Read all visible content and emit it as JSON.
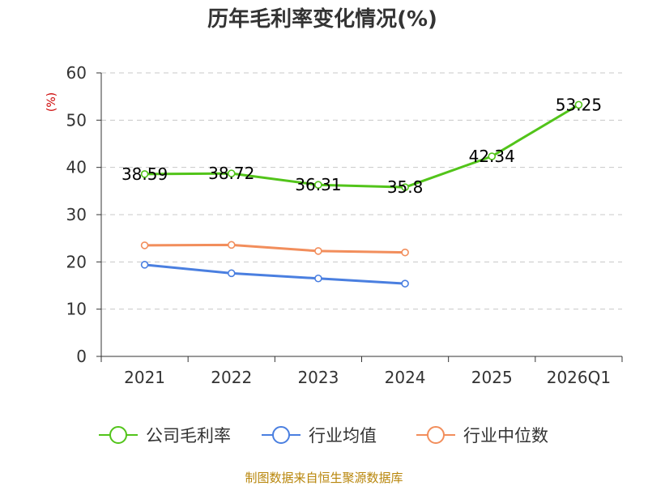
{
  "chart_data": {
    "type": "line",
    "title": "历年毛利率变化情况(%)",
    "ylabel": "(%)",
    "xlabel": "",
    "categories": [
      "2021",
      "2022",
      "2023",
      "2024",
      "2025",
      "2026Q1"
    ],
    "ylim": [
      0,
      60
    ],
    "yticks": [
      0,
      10,
      20,
      30,
      40,
      50,
      60
    ],
    "grid": true,
    "legend_position": "bottom",
    "series": [
      {
        "name": "公司毛利率",
        "color": "#52c41a",
        "values": [
          38.59,
          38.72,
          36.31,
          35.8,
          42.34,
          53.25
        ],
        "labels": [
          "38.59",
          "38.72",
          "36.31",
          "35.8",
          "42.34",
          "53.25"
        ]
      },
      {
        "name": "行业均值",
        "color": "#4a7fe0",
        "values": [
          19.4,
          17.6,
          16.5,
          15.4,
          null,
          null
        ]
      },
      {
        "name": "行业中位数",
        "color": "#f28e5c",
        "values": [
          23.5,
          23.6,
          22.3,
          22.0,
          null,
          null
        ]
      }
    ]
  },
  "footer": {
    "source": "制图数据来自恒生聚源数据库"
  }
}
